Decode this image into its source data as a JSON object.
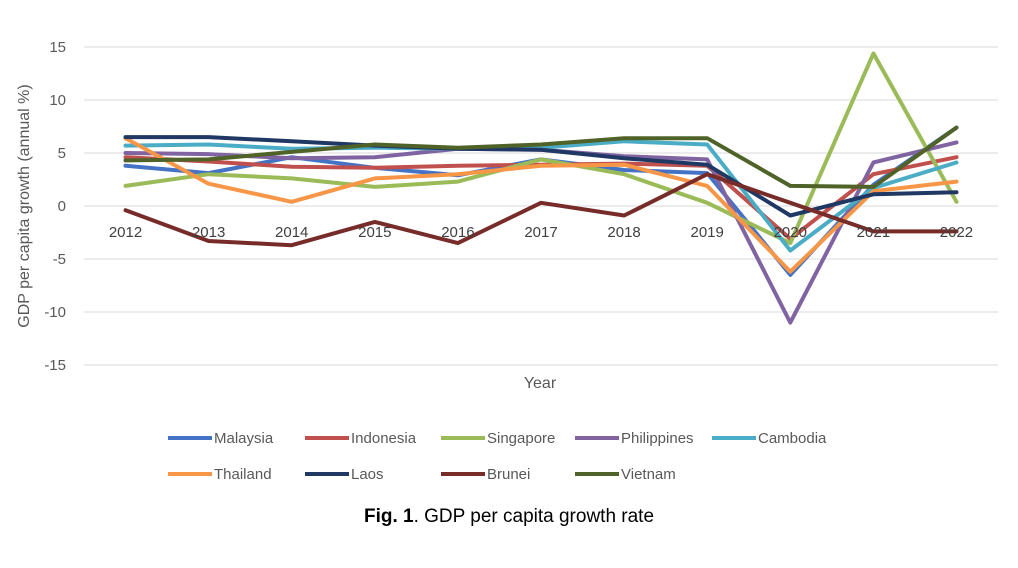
{
  "chart_data": {
    "type": "line",
    "title": "",
    "xlabel": "Year",
    "ylabel": "GDP per capita growth (annual %)",
    "ylim": [
      -15,
      15
    ],
    "yticks": [
      15,
      10,
      5,
      0,
      -5,
      -10,
      -15
    ],
    "ytick_labels": [
      "15",
      "10",
      "5",
      "0",
      "-5",
      "-10",
      "-15"
    ],
    "grid": true,
    "legend_position": "bottom",
    "categories": [
      "2012",
      "2013",
      "2014",
      "2015",
      "2016",
      "2017",
      "2018",
      "2019",
      "2020",
      "2021",
      "2022"
    ],
    "series": [
      {
        "name": "Malaysia",
        "color": "#4472c4",
        "values": [
          3.8,
          3.1,
          4.6,
          3.6,
          2.9,
          4.4,
          3.4,
          3.1,
          -6.5,
          2.0,
          7.4
        ]
      },
      {
        "name": "Indonesia",
        "color": "#c0504d",
        "values": [
          4.6,
          4.2,
          3.7,
          3.6,
          3.8,
          3.9,
          4.0,
          3.8,
          -3.1,
          3.0,
          4.6
        ]
      },
      {
        "name": "Singapore",
        "color": "#9bbb59",
        "values": [
          1.9,
          3.0,
          2.6,
          1.8,
          2.3,
          4.4,
          3.0,
          0.3,
          -3.5,
          14.4,
          0.4
        ]
      },
      {
        "name": "Philippines",
        "color": "#8064a2",
        "values": [
          5.0,
          4.9,
          4.5,
          4.6,
          5.4,
          5.3,
          4.7,
          4.4,
          -11.0,
          4.1,
          6.0
        ]
      },
      {
        "name": "Cambodia",
        "color": "#4bacc6",
        "values": [
          5.7,
          5.8,
          5.4,
          5.5,
          5.4,
          5.5,
          6.1,
          5.8,
          -4.2,
          1.7,
          4.1
        ]
      },
      {
        "name": "Thailand",
        "color": "#f79646",
        "values": [
          6.4,
          2.1,
          0.4,
          2.6,
          3.0,
          3.8,
          3.9,
          1.9,
          -6.2,
          1.4,
          2.3
        ]
      },
      {
        "name": "Laos",
        "color": "#1f3864",
        "values": [
          6.5,
          6.5,
          6.1,
          5.7,
          5.4,
          5.3,
          4.5,
          3.9,
          -0.9,
          1.1,
          1.3
        ]
      },
      {
        "name": "Brunei",
        "color": "#772c2a",
        "values": [
          -0.4,
          -3.3,
          -3.7,
          -1.5,
          -3.5,
          0.3,
          -0.9,
          3.0,
          0.3,
          -2.4,
          -2.4
        ]
      },
      {
        "name": "Vietnam",
        "color": "#4f6228",
        "values": [
          4.3,
          4.4,
          5.1,
          5.8,
          5.5,
          5.8,
          6.4,
          6.4,
          1.9,
          1.8,
          7.4
        ]
      }
    ]
  },
  "caption": {
    "label": "Fig. 1",
    "text": ". GDP per capita growth rate"
  }
}
